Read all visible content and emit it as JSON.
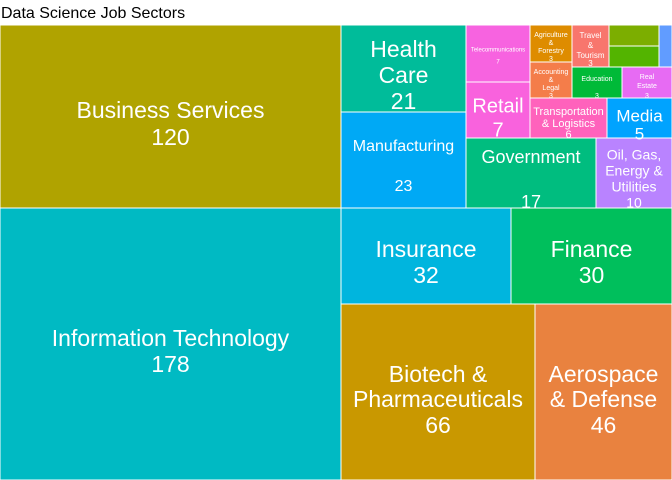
{
  "chart_data": {
    "type": "treemap",
    "title": "Data Science Job Sectors",
    "tiles": [
      {
        "label": "Information Technology",
        "value": 178,
        "color": "#00BAC3"
      },
      {
        "label": "Business Services",
        "value": 120,
        "color": "#B0A300"
      },
      {
        "label": "Biotech & Pharmaceuticals",
        "value": 66,
        "color": "#C99800"
      },
      {
        "label": "Aerospace & Defense",
        "value": 46,
        "color": "#E9823F"
      },
      {
        "label": "Insurance",
        "value": 32,
        "color": "#00B5DE"
      },
      {
        "label": "Finance",
        "value": 30,
        "color": "#00BF5C"
      },
      {
        "label": "Manufacturing",
        "value": 23,
        "color": "#00A9F5"
      },
      {
        "label": "Health Care",
        "value": 21,
        "color": "#00BC9A"
      },
      {
        "label": "Government",
        "value": 17,
        "color": "#00BD7F"
      },
      {
        "label": "Oil, Gas, Energy & Utilities",
        "value": 10,
        "color": "#B983FF"
      },
      {
        "label": "Retail",
        "value": 7,
        "color": "#F962DD"
      },
      {
        "label": "Telecommunications",
        "value": 7,
        "color": "#F763E0"
      },
      {
        "label": "Transportation & Logistics",
        "value": 6,
        "color": "#FF62BC"
      },
      {
        "label": "Media",
        "value": 5,
        "color": "#00A3FF"
      },
      {
        "label": "Agriculture & Forestry",
        "value": 3,
        "color": "#DE8C00"
      },
      {
        "label": "Travel & Tourism",
        "value": 3,
        "color": "#F8766D"
      },
      {
        "label": "Accounting & Legal",
        "value": 3,
        "color": "#F47D4A"
      },
      {
        "label": "Education",
        "value": 3,
        "color": "#00BA38"
      },
      {
        "label": "Real Estate",
        "value": 3,
        "color": "#E76BF3"
      },
      {
        "label": "",
        "value": null,
        "color": "#7CAE00"
      },
      {
        "label": "",
        "value": null,
        "color": "#53B400"
      },
      {
        "label": "",
        "value": null,
        "color": "#619CFF"
      }
    ]
  }
}
